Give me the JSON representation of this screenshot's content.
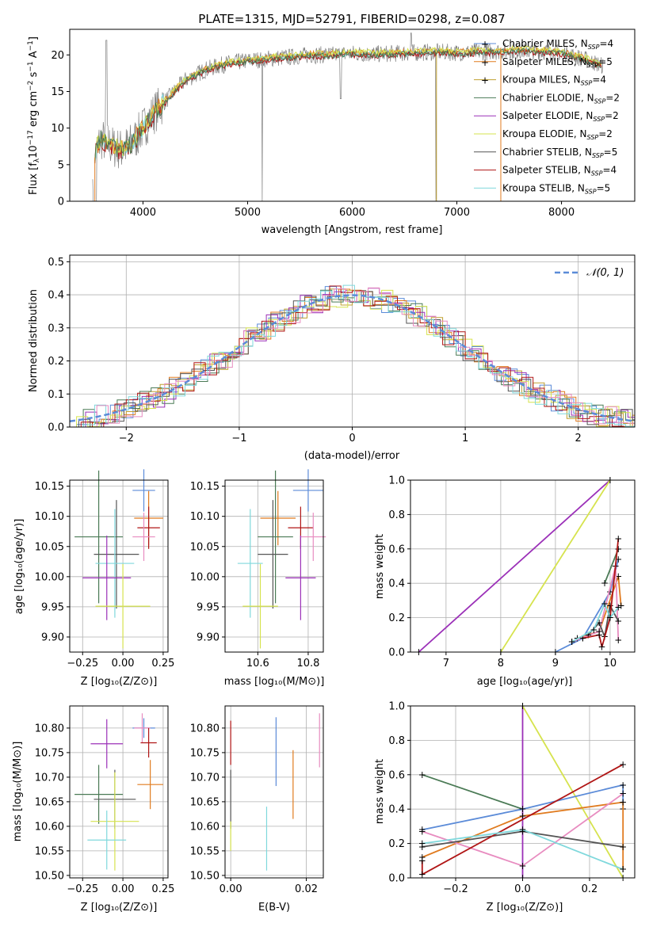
{
  "colors": {
    "chabrier_miles": "#5b8bd8",
    "salpeter_miles": "#e07b1f",
    "kroupa_miles": "#c0a030",
    "chabrier_elodie": "#4a7a55",
    "salpeter_elodie": "#9b30b8",
    "kroupa_elodie": "#d6e34e",
    "chabrier_stelib": "#555555",
    "salpeter_stelib": "#b01515",
    "kroupa_stelib": "#7fd8dc",
    "pink": "#e88cc0",
    "gaussian": "#5b8bd8",
    "spectrum": "#808080"
  },
  "chart_data": [
    {
      "id": "spectrum",
      "type": "line",
      "title": "PLATE=1315, MJD=52791, FIBERID=0298, z=0.087",
      "xlabel": "wavelength [Angstrom, rest frame]",
      "ylabel": "Flux [fλ10⁻¹⁷ erg cm⁻² s⁻¹ A⁻¹]",
      "xlim": [
        3300,
        8700
      ],
      "ylim": [
        0,
        23.5
      ],
      "xticks": [
        "4000",
        "5000",
        "6000",
        "7000",
        "8000"
      ],
      "yticks": [
        "0",
        "5",
        "10",
        "15",
        "20"
      ],
      "legend_position": "right",
      "legend": [
        "Chabrier MILES, N_SSP=4",
        "Salpeter MILES, N_SSP=5",
        "Kroupa MILES, N_SSP=4",
        "Chabrier ELODIE, N_SSP=2",
        "Salpeter ELODIE, N_SSP=2",
        "Kroupa ELODIE, N_SSP=2",
        "Chabrier STELIB, N_SSP=5",
        "Salpeter STELIB, N_SSP=4",
        "Kroupa STELIB, N_SSP=5"
      ],
      "continuum": {
        "x": [
          3520,
          3600,
          3700,
          3800,
          3900,
          4000,
          4100,
          4200,
          4300,
          4400,
          4600,
          4800,
          5000,
          5200,
          5400,
          5600,
          5800,
          6000,
          6200,
          6400,
          6600,
          6800,
          7000,
          7200,
          7400,
          7600,
          7800,
          8000,
          8200,
          8400
        ],
        "y": [
          6,
          8.5,
          7.5,
          7,
          8,
          10,
          12,
          13.5,
          15,
          16.5,
          18,
          18.8,
          19.2,
          19.5,
          19.7,
          20,
          20,
          20.2,
          20.1,
          20.2,
          20.3,
          20.4,
          20.3,
          20.4,
          20.5,
          20.6,
          20.5,
          20.3,
          19.5,
          18.5
        ]
      }
    },
    {
      "id": "residuals",
      "type": "area",
      "xlabel": "(data-model)/error",
      "ylabel": "Normed distribution",
      "xlim": [
        -2.5,
        2.5
      ],
      "ylim": [
        0,
        0.52
      ],
      "xticks": [
        "−2",
        "−1",
        "0",
        "1",
        "2"
      ],
      "yticks": [
        "0.0",
        "0.1",
        "0.2",
        "0.3",
        "0.4",
        "0.5"
      ],
      "gaussian_label": "𝒩(0, 1)",
      "legend_position": "upper right"
    },
    {
      "id": "age_vs_Z",
      "type": "scatter",
      "xlabel": "Z [log₁₀(Z/Z⊙)]",
      "ylabel": "age  [log₁₀(age/yr)]",
      "xlim": [
        -0.33,
        0.28
      ],
      "ylim": [
        9.875,
        10.16
      ],
      "xticks": [
        "−0.25",
        "0.00",
        "0.25"
      ],
      "yticks": [
        "9.90",
        "9.95",
        "10.00",
        "10.05",
        "10.10",
        "10.15"
      ],
      "points": [
        {
          "c": "chabrier_miles",
          "x": 0.13,
          "xerr": 0.07,
          "y": 10.143,
          "yerr": 0.035
        },
        {
          "c": "salpeter_miles",
          "x": 0.16,
          "xerr": 0.09,
          "y": 10.097,
          "yerr": 0.045
        },
        {
          "c": "salpeter_stelib",
          "x": 0.16,
          "xerr": 0.07,
          "y": 10.081,
          "yerr": 0.035
        },
        {
          "c": "pink",
          "x": 0.13,
          "xerr": 0.07,
          "y": 10.066,
          "yerr": 0.04
        },
        {
          "c": "chabrier_elodie",
          "x": -0.15,
          "xerr": 0.15,
          "y": 10.066,
          "yerr": 0.11
        },
        {
          "c": "chabrier_stelib",
          "x": -0.04,
          "xerr": 0.14,
          "y": 10.037,
          "yerr": 0.09
        },
        {
          "c": "kroupa_stelib",
          "x": -0.05,
          "xerr": 0.12,
          "y": 10.022,
          "yerr": 0.09
        },
        {
          "c": "salpeter_elodie",
          "x": -0.1,
          "xerr": 0.15,
          "y": 9.998,
          "yerr": 0.07
        },
        {
          "c": "kroupa_elodie",
          "x": 0.0,
          "xerr": 0.17,
          "y": 9.951,
          "yerr": 0.07
        }
      ]
    },
    {
      "id": "age_vs_mass",
      "type": "scatter",
      "xlabel": "mass [log₁₀(M/M⊙)]",
      "xlim": [
        10.47,
        10.86
      ],
      "ylim": [
        9.875,
        10.16
      ],
      "xticks": [
        "10.6",
        "10.8"
      ],
      "yticks": [
        "9.90",
        "9.95",
        "10.00",
        "10.05",
        "10.10",
        "10.15"
      ],
      "points": [
        {
          "c": "chabrier_miles",
          "x": 10.8,
          "xerr": 0.06,
          "y": 10.143,
          "yerr": 0.035
        },
        {
          "c": "salpeter_miles",
          "x": 10.68,
          "xerr": 0.07,
          "y": 10.097,
          "yerr": 0.045
        },
        {
          "c": "salpeter_stelib",
          "x": 10.77,
          "xerr": 0.05,
          "y": 10.081,
          "yerr": 0.035
        },
        {
          "c": "pink",
          "x": 10.82,
          "xerr": 0.05,
          "y": 10.066,
          "yerr": 0.04
        },
        {
          "c": "chabrier_elodie",
          "x": 10.67,
          "xerr": 0.07,
          "y": 10.066,
          "yerr": 0.11
        },
        {
          "c": "chabrier_stelib",
          "x": 10.66,
          "xerr": 0.06,
          "y": 10.037,
          "yerr": 0.09
        },
        {
          "c": "kroupa_stelib",
          "x": 10.57,
          "xerr": 0.05,
          "y": 10.022,
          "yerr": 0.09
        },
        {
          "c": "salpeter_elodie",
          "x": 10.77,
          "xerr": 0.06,
          "y": 9.998,
          "yerr": 0.07
        },
        {
          "c": "kroupa_elodie",
          "x": 10.61,
          "xerr": 0.07,
          "y": 9.951,
          "yerr": 0.07
        }
      ]
    },
    {
      "id": "weight_vs_age",
      "type": "line",
      "xlabel": "age  [log₁₀(age/yr)]",
      "ylabel": "mass weight",
      "xlim": [
        6.35,
        10.45
      ],
      "ylim": [
        0,
        1.0
      ],
      "xticks": [
        "7",
        "8",
        "9",
        "10"
      ],
      "yticks": [
        "0.0",
        "0.2",
        "0.4",
        "0.6",
        "0.8",
        "1.0"
      ],
      "series": [
        {
          "c": "salpeter_elodie",
          "x": [
            6.5,
            10.0
          ],
          "y": [
            0.0,
            1.0
          ]
        },
        {
          "c": "kroupa_elodie",
          "x": [
            8.0,
            10.0
          ],
          "y": [
            0.0,
            1.0
          ]
        },
        {
          "c": "chabrier_miles",
          "x": [
            9.0,
            9.5,
            10.0,
            10.15
          ],
          "y": [
            0.0,
            0.08,
            0.35,
            0.54
          ]
        },
        {
          "c": "salpeter_miles",
          "x": [
            9.4,
            9.8,
            10.15,
            10.2
          ],
          "y": [
            0.08,
            0.12,
            0.44,
            0.27
          ]
        },
        {
          "c": "pink",
          "x": [
            9.3,
            9.8,
            10.1,
            10.15
          ],
          "y": [
            0.06,
            0.12,
            0.5,
            0.07
          ]
        },
        {
          "c": "chabrier_elodie",
          "x": [
            9.9,
            10.15
          ],
          "y": [
            0.4,
            0.6
          ]
        },
        {
          "c": "chabrier_stelib",
          "x": [
            9.6,
            9.8,
            9.9,
            10.0,
            10.15
          ],
          "y": [
            0.1,
            0.17,
            0.09,
            0.27,
            0.18
          ]
        },
        {
          "c": "salpeter_stelib",
          "x": [
            9.5,
            9.8,
            9.85,
            10.0,
            10.15
          ],
          "y": [
            0.08,
            0.1,
            0.03,
            0.2,
            0.66
          ]
        },
        {
          "c": "kroupa_stelib",
          "x": [
            9.3,
            9.7,
            9.9,
            10.0,
            10.15
          ],
          "y": [
            0.06,
            0.13,
            0.28,
            0.2,
            0.26
          ]
        }
      ]
    },
    {
      "id": "mass_vs_Z",
      "type": "scatter",
      "xlabel": "Z [log₁₀(Z/Z⊙)]",
      "ylabel": "mass [log₁₀(M/M⊙)]",
      "xlim": [
        -0.33,
        0.28
      ],
      "ylim": [
        10.495,
        10.845
      ],
      "xticks": [
        "−0.25",
        "0.00",
        "0.25"
      ],
      "yticks": [
        "10.50",
        "10.55",
        "10.60",
        "10.65",
        "10.70",
        "10.75",
        "10.80"
      ],
      "points": [
        {
          "c": "chabrier_miles",
          "x": 0.13,
          "xerr": 0.07,
          "y": 10.8,
          "yerr": 0.02
        },
        {
          "c": "pink",
          "x": 0.12,
          "xerr": 0.05,
          "y": 10.8,
          "yerr": 0.03
        },
        {
          "c": "salpeter_stelib",
          "x": 0.16,
          "xerr": 0.05,
          "y": 10.77,
          "yerr": 0.03
        },
        {
          "c": "salpeter_elodie",
          "x": -0.1,
          "xerr": 0.1,
          "y": 10.768,
          "yerr": 0.05
        },
        {
          "c": "salpeter_miles",
          "x": 0.17,
          "xerr": 0.08,
          "y": 10.685,
          "yerr": 0.05
        },
        {
          "c": "chabrier_elodie",
          "x": -0.15,
          "xerr": 0.15,
          "y": 10.665,
          "yerr": 0.06
        },
        {
          "c": "chabrier_stelib",
          "x": -0.05,
          "xerr": 0.13,
          "y": 10.655,
          "yerr": 0.06
        },
        {
          "c": "kroupa_elodie",
          "x": -0.05,
          "xerr": 0.15,
          "y": 10.61,
          "yerr": 0.1
        },
        {
          "c": "kroupa_stelib",
          "x": -0.1,
          "xerr": 0.12,
          "y": 10.572,
          "yerr": 0.06
        }
      ]
    },
    {
      "id": "mass_vs_ebv",
      "type": "scatter",
      "xlabel": "E(B-V)",
      "xlim": [
        -0.0015,
        0.0245
      ],
      "ylim": [
        10.495,
        10.845
      ],
      "xticks": [
        "0.00",
        "0.02"
      ],
      "yticks": [
        "10.50",
        "10.55",
        "10.60",
        "10.65",
        "10.70",
        "10.75",
        "10.80"
      ],
      "points": [
        {
          "c": "salpeter_stelib",
          "x": 0.0,
          "xerr": 0,
          "y": 10.77,
          "yerr": 0.045
        },
        {
          "c": "chabrier_stelib",
          "x": 0.0,
          "xerr": 0,
          "y": 10.655,
          "yerr": 0.06
        },
        {
          "c": "kroupa_elodie",
          "x": 0.0,
          "xerr": 0,
          "y": 10.58,
          "yerr": 0.03
        },
        {
          "c": "kroupa_stelib",
          "x": 0.0095,
          "xerr": 0,
          "y": 10.575,
          "yerr": 0.065
        },
        {
          "c": "chabrier_miles",
          "x": 0.012,
          "xerr": 0,
          "y": 10.752,
          "yerr": 0.07
        },
        {
          "c": "salpeter_miles",
          "x": 0.0165,
          "xerr": 0,
          "y": 10.685,
          "yerr": 0.07
        },
        {
          "c": "pink",
          "x": 0.0235,
          "xerr": 0,
          "y": 10.775,
          "yerr": 0.055
        }
      ]
    },
    {
      "id": "weight_vs_Z",
      "type": "line",
      "xlabel": "Z [log₁₀(Z/Z⊙)]",
      "ylabel": "mass weight",
      "xlim": [
        -0.335,
        0.335
      ],
      "ylim": [
        0,
        1.0
      ],
      "xticks": [
        "−0.2",
        "0.0",
        "0.2"
      ],
      "yticks": [
        "0.0",
        "0.2",
        "0.4",
        "0.6",
        "0.8",
        "1.0"
      ],
      "series": [
        {
          "c": "chabrier_elodie",
          "x": [
            -0.3,
            0.0
          ],
          "y": [
            0.6,
            0.4
          ]
        },
        {
          "c": "salpeter_elodie",
          "x": [
            0.0,
            0.0
          ],
          "y": [
            0.0,
            1.0
          ]
        },
        {
          "c": "kroupa_elodie",
          "x": [
            0.0,
            0.3
          ],
          "y": [
            1.0,
            0.0
          ]
        },
        {
          "c": "chabrier_miles",
          "x": [
            -0.3,
            0.0,
            0.3,
            0.3
          ],
          "y": [
            0.28,
            0.4,
            0.54,
            0.4
          ]
        },
        {
          "c": "salpeter_miles",
          "x": [
            -0.3,
            0.0,
            0.3,
            0.3
          ],
          "y": [
            0.12,
            0.36,
            0.44,
            0.05
          ]
        },
        {
          "c": "pink",
          "x": [
            -0.3,
            0.0,
            0.3
          ],
          "y": [
            0.27,
            0.07,
            0.49
          ]
        },
        {
          "c": "chabrier_stelib",
          "x": [
            -0.3,
            0.0,
            0.3
          ],
          "y": [
            0.18,
            0.27,
            0.18
          ]
        },
        {
          "c": "salpeter_stelib",
          "x": [
            -0.3,
            -0.3,
            0.3
          ],
          "y": [
            0.1,
            0.02,
            0.66
          ]
        },
        {
          "c": "kroupa_stelib",
          "x": [
            -0.3,
            0.0,
            0.3
          ],
          "y": [
            0.2,
            0.28,
            0.05
          ]
        }
      ]
    }
  ]
}
